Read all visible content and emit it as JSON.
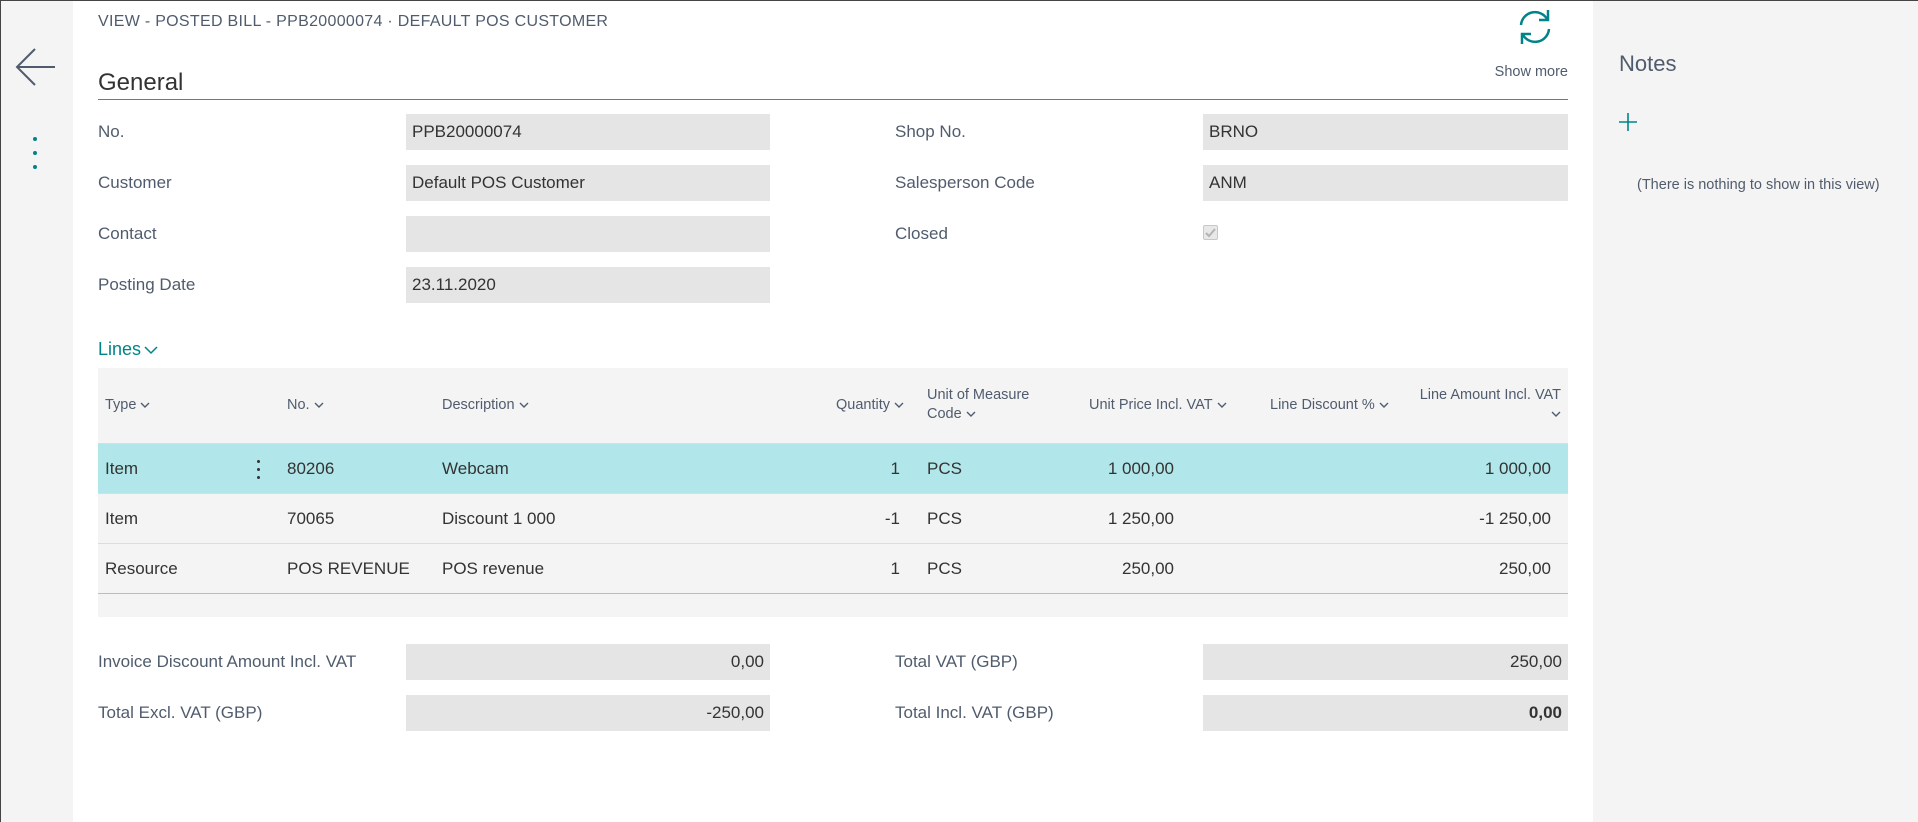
{
  "header": {
    "caption": "VIEW - POSTED BILL - PPB20000074 · DEFAULT POS CUSTOMER",
    "show_more": "Show more"
  },
  "general": {
    "title": "General",
    "fields": {
      "no": {
        "label": "No.",
        "value": "PPB20000074"
      },
      "customer": {
        "label": "Customer",
        "value": "Default POS Customer"
      },
      "contact": {
        "label": "Contact",
        "value": ""
      },
      "posting_date": {
        "label": "Posting Date",
        "value": "23.11.2020"
      },
      "shop_no": {
        "label": "Shop No.",
        "value": "BRNO"
      },
      "salesperson_code": {
        "label": "Salesperson Code",
        "value": "ANM"
      },
      "closed": {
        "label": "Closed",
        "checked": true
      }
    }
  },
  "lines": {
    "title": "Lines",
    "columns": {
      "type": "Type",
      "no": "No.",
      "description": "Description",
      "quantity": "Quantity",
      "uom_line1": "Unit of Measure",
      "uom_line2": "Code",
      "unit_price": "Unit Price Incl. VAT",
      "line_discount": "Line Discount %",
      "line_amount": "Line Amount Incl. VAT"
    },
    "rows": [
      {
        "type": "Item",
        "no": "80206",
        "description": "Webcam",
        "quantity": "1",
        "uom": "PCS",
        "unit_price": "1 000,00",
        "line_discount": "",
        "line_amount": "1 000,00"
      },
      {
        "type": "Item",
        "no": "70065",
        "description": "Discount 1 000",
        "quantity": "-1",
        "uom": "PCS",
        "unit_price": "1 250,00",
        "line_discount": "",
        "line_amount": "-1 250,00"
      },
      {
        "type": "Resource",
        "no": "POS REVENUE",
        "description": "POS revenue",
        "quantity": "1",
        "uom": "PCS",
        "unit_price": "250,00",
        "line_discount": "",
        "line_amount": "250,00"
      }
    ]
  },
  "totals": {
    "invoice_discount": {
      "label": "Invoice Discount Amount Incl. VAT",
      "value": "0,00"
    },
    "total_excl_vat": {
      "label": "Total Excl. VAT (GBP)",
      "value": "-250,00"
    },
    "total_vat": {
      "label": "Total VAT (GBP)",
      "value": "250,00"
    },
    "total_incl_vat": {
      "label": "Total Incl. VAT (GBP)",
      "value": "0,00"
    }
  },
  "notes": {
    "title": "Notes",
    "empty_text": "(There is nothing to show in this view)"
  },
  "colors": {
    "accent": "#008489",
    "selected_row": "#b1e7ea",
    "field_bg": "#e5e5e6"
  }
}
